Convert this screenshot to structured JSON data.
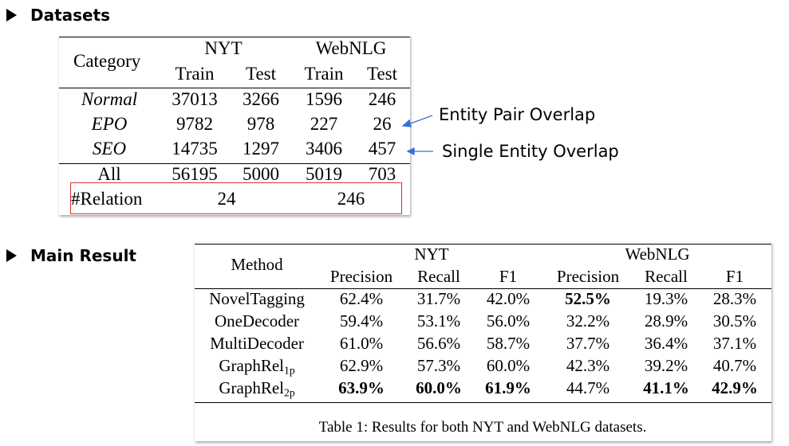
{
  "sections": {
    "datasets": "Datasets",
    "main_result": "Main Result"
  },
  "datasets_table": {
    "category_header": "Category",
    "nyt": "NYT",
    "webnlg": "WebNLG",
    "train": "Train",
    "test": "Test",
    "rows": [
      {
        "label": "Normal",
        "values": [
          "37013",
          "3266",
          "1596",
          "246"
        ]
      },
      {
        "label": "EPO",
        "values": [
          "9782",
          "978",
          "227",
          "26"
        ]
      },
      {
        "label": "SEO",
        "values": [
          "14735",
          "1297",
          "3406",
          "457"
        ]
      },
      {
        "label": "All",
        "values": [
          "56195",
          "5000",
          "5019",
          "703"
        ]
      }
    ],
    "relation": {
      "label": "#Relation",
      "nyt": "24",
      "webnlg": "246"
    }
  },
  "annotations": {
    "epo": "Entity Pair Overlap",
    "seo": "Single Entity Overlap",
    "arrow_color": "#3b6fd4",
    "highlight_color": "#e03030"
  },
  "results_table": {
    "method_header": "Method",
    "nyt": "NYT",
    "webnlg": "WebNLG",
    "precision": "Precision",
    "recall": "Recall",
    "f1": "F1",
    "rows": [
      {
        "method": "NovelTagging",
        "sub": "",
        "values": [
          "62.4%",
          "31.7%",
          "42.0%",
          "52.5%",
          "19.3%",
          "28.3%"
        ],
        "bold": [
          false,
          false,
          false,
          true,
          false,
          false
        ]
      },
      {
        "method": "OneDecoder",
        "sub": "",
        "values": [
          "59.4%",
          "53.1%",
          "56.0%",
          "32.2%",
          "28.9%",
          "30.5%"
        ],
        "bold": [
          false,
          false,
          false,
          false,
          false,
          false
        ]
      },
      {
        "method": "MultiDecoder",
        "sub": "",
        "values": [
          "61.0%",
          "56.6%",
          "58.7%",
          "37.7%",
          "36.4%",
          "37.1%"
        ],
        "bold": [
          false,
          false,
          false,
          false,
          false,
          false
        ]
      },
      {
        "method": "GraphRel",
        "sub": "1p",
        "values": [
          "62.9%",
          "57.3%",
          "60.0%",
          "42.3%",
          "39.2%",
          "40.7%"
        ],
        "bold": [
          false,
          false,
          false,
          false,
          false,
          false
        ]
      },
      {
        "method": "GraphRel",
        "sub": "2p",
        "values": [
          "63.9%",
          "60.0%",
          "61.9%",
          "44.7%",
          "41.1%",
          "42.9%"
        ],
        "bold": [
          true,
          true,
          true,
          false,
          true,
          true
        ]
      }
    ],
    "caption": "Table 1: Results for both NYT and WebNLG datasets."
  }
}
